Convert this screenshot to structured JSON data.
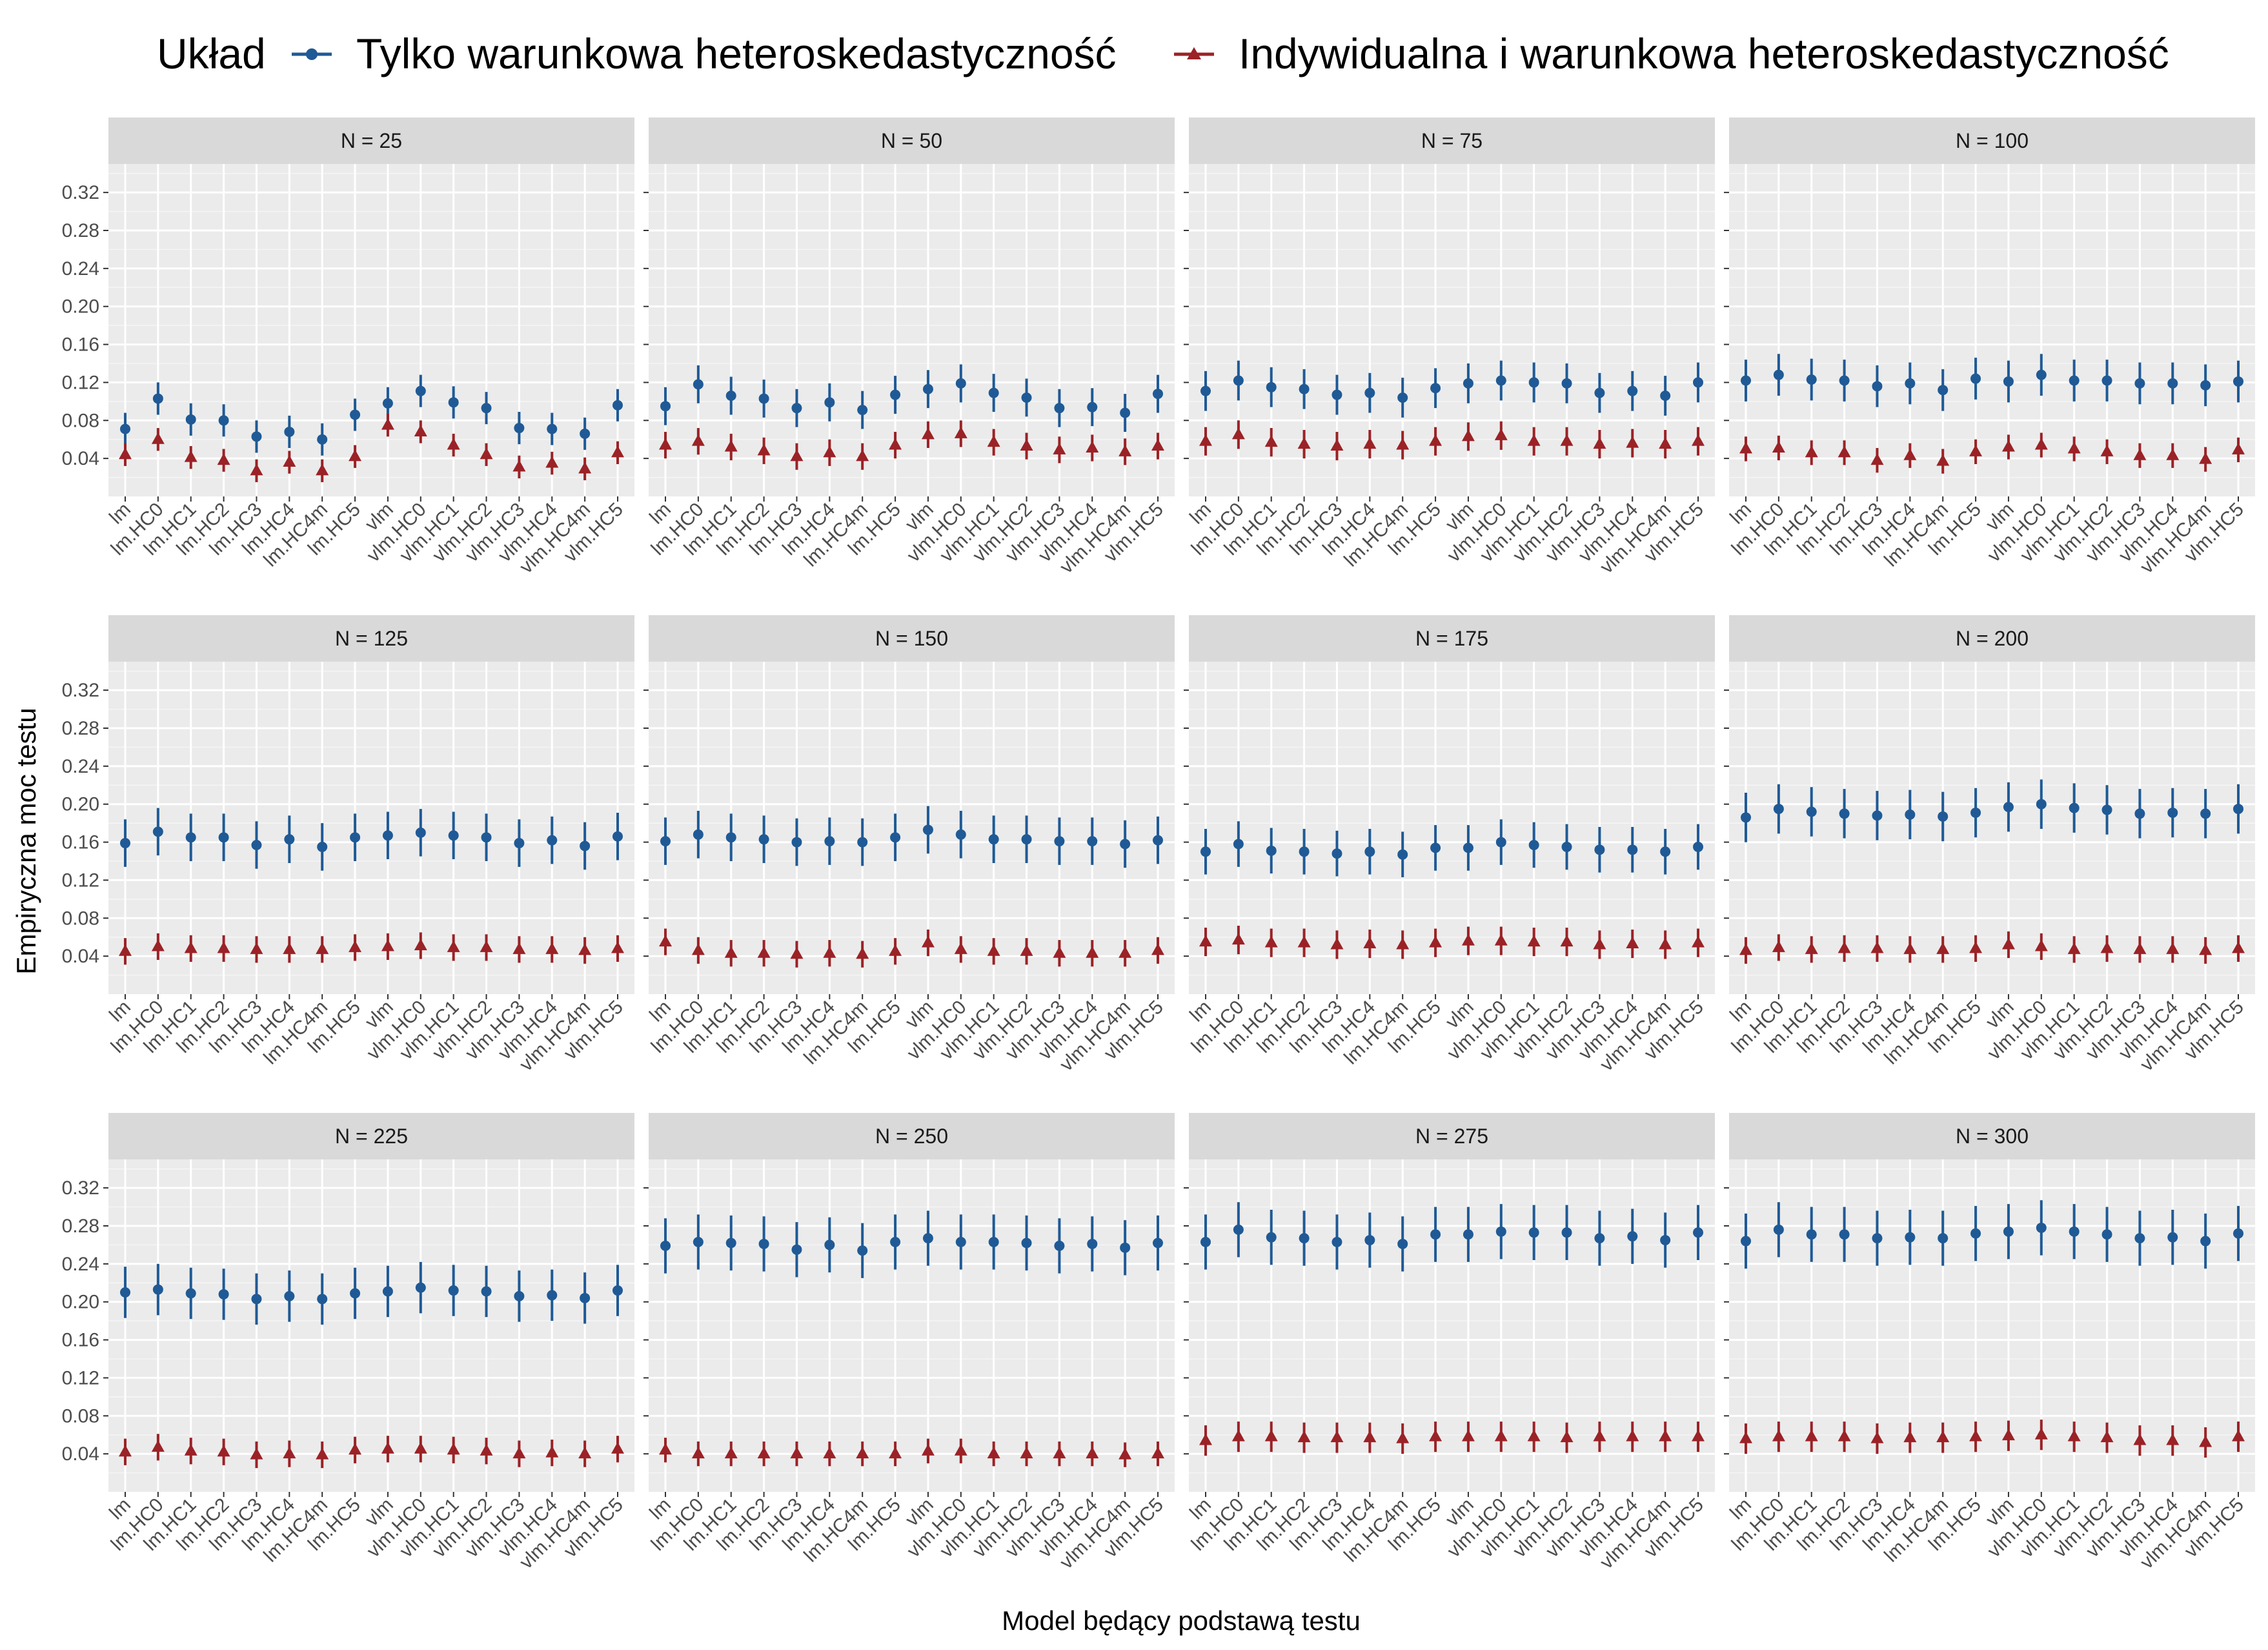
{
  "chart_data": {
    "type": "scatter",
    "subtype": "point-errorbar facet grid",
    "xlabel": "Model będący podstawą testu",
    "ylabel": "Empiryczna moc testu",
    "legend": {
      "title": "Układ",
      "position": "top",
      "entries": [
        {
          "name": "Tylko warunkowa heteroskedastyczność",
          "color": "#1f5a96",
          "marker": "circle"
        },
        {
          "name": "Indywidualna i warunkowa heteroskedastyczność",
          "color": "#9b2226",
          "marker": "triangle"
        }
      ]
    },
    "ylim": [
      0,
      0.35
    ],
    "yticks": [
      "0.04",
      "0.08",
      "0.12",
      "0.16",
      "0.20",
      "0.24",
      "0.28",
      "0.32"
    ],
    "categories": [
      "lm",
      "lm.HC0",
      "lm.HC1",
      "lm.HC2",
      "lm.HC3",
      "lm.HC4",
      "lm.HC4m",
      "lm.HC5",
      "vlm",
      "vlm.HC0",
      "vlm.HC1",
      "vlm.HC2",
      "vlm.HC3",
      "vlm.HC4",
      "vlm.HC4m",
      "vlm.HC5"
    ],
    "facets": [
      {
        "title": "N = 25",
        "blue": [
          0.071,
          0.103,
          0.081,
          0.08,
          0.063,
          0.068,
          0.06,
          0.086,
          0.098,
          0.111,
          0.099,
          0.093,
          0.072,
          0.071,
          0.066,
          0.096
        ],
        "blue_err": 0.017,
        "red": [
          0.044,
          0.06,
          0.041,
          0.038,
          0.027,
          0.036,
          0.027,
          0.042,
          0.075,
          0.068,
          0.054,
          0.044,
          0.031,
          0.035,
          0.029,
          0.046
        ],
        "red_err": 0.012
      },
      {
        "title": "N = 50",
        "blue": [
          0.095,
          0.118,
          0.106,
          0.103,
          0.093,
          0.099,
          0.091,
          0.107,
          0.113,
          0.119,
          0.109,
          0.104,
          0.093,
          0.094,
          0.088,
          0.108
        ],
        "blue_err": 0.02,
        "red": [
          0.054,
          0.058,
          0.052,
          0.048,
          0.042,
          0.046,
          0.042,
          0.054,
          0.065,
          0.066,
          0.057,
          0.053,
          0.049,
          0.051,
          0.047,
          0.053
        ],
        "red_err": 0.014
      },
      {
        "title": "N = 75",
        "blue": [
          0.111,
          0.122,
          0.115,
          0.113,
          0.107,
          0.109,
          0.104,
          0.114,
          0.119,
          0.122,
          0.12,
          0.119,
          0.109,
          0.111,
          0.106,
          0.12
        ],
        "blue_err": 0.021,
        "red": [
          0.058,
          0.065,
          0.057,
          0.055,
          0.053,
          0.055,
          0.054,
          0.058,
          0.063,
          0.064,
          0.058,
          0.058,
          0.055,
          0.056,
          0.055,
          0.058
        ],
        "red_err": 0.015
      },
      {
        "title": "N = 100",
        "blue": [
          0.122,
          0.128,
          0.123,
          0.122,
          0.116,
          0.119,
          0.112,
          0.124,
          0.121,
          0.128,
          0.122,
          0.122,
          0.119,
          0.119,
          0.117,
          0.121
        ],
        "blue_err": 0.022,
        "red": [
          0.05,
          0.051,
          0.046,
          0.046,
          0.038,
          0.043,
          0.037,
          0.047,
          0.052,
          0.054,
          0.05,
          0.047,
          0.043,
          0.043,
          0.039,
          0.049
        ],
        "red_err": 0.013
      },
      {
        "title": "N = 125",
        "blue": [
          0.159,
          0.171,
          0.165,
          0.165,
          0.157,
          0.163,
          0.155,
          0.165,
          0.167,
          0.17,
          0.167,
          0.165,
          0.159,
          0.162,
          0.156,
          0.166
        ],
        "blue_err": 0.025,
        "red": [
          0.045,
          0.05,
          0.048,
          0.048,
          0.047,
          0.047,
          0.047,
          0.049,
          0.05,
          0.051,
          0.049,
          0.049,
          0.047,
          0.047,
          0.046,
          0.048
        ],
        "red_err": 0.014
      },
      {
        "title": "N = 150",
        "blue": [
          0.161,
          0.168,
          0.165,
          0.163,
          0.16,
          0.161,
          0.16,
          0.165,
          0.173,
          0.168,
          0.163,
          0.163,
          0.161,
          0.161,
          0.158,
          0.162
        ],
        "blue_err": 0.025,
        "red": [
          0.055,
          0.046,
          0.043,
          0.043,
          0.042,
          0.043,
          0.042,
          0.045,
          0.054,
          0.047,
          0.045,
          0.045,
          0.043,
          0.043,
          0.043,
          0.046
        ],
        "red_err": 0.014
      },
      {
        "title": "N = 175",
        "blue": [
          0.15,
          0.158,
          0.151,
          0.15,
          0.148,
          0.15,
          0.147,
          0.154,
          0.154,
          0.16,
          0.157,
          0.155,
          0.152,
          0.152,
          0.15,
          0.155
        ],
        "blue_err": 0.024,
        "red": [
          0.055,
          0.057,
          0.054,
          0.054,
          0.052,
          0.053,
          0.052,
          0.054,
          0.056,
          0.056,
          0.055,
          0.055,
          0.052,
          0.053,
          0.052,
          0.054
        ],
        "red_err": 0.015
      },
      {
        "title": "N = 200",
        "blue": [
          0.186,
          0.195,
          0.192,
          0.19,
          0.188,
          0.189,
          0.187,
          0.191,
          0.197,
          0.2,
          0.196,
          0.194,
          0.19,
          0.191,
          0.19,
          0.195
        ],
        "blue_err": 0.026,
        "red": [
          0.046,
          0.049,
          0.047,
          0.048,
          0.048,
          0.047,
          0.047,
          0.048,
          0.052,
          0.05,
          0.047,
          0.048,
          0.047,
          0.047,
          0.046,
          0.048
        ],
        "red_err": 0.014
      },
      {
        "title": "N = 225",
        "blue": [
          0.21,
          0.213,
          0.209,
          0.208,
          0.203,
          0.206,
          0.203,
          0.209,
          0.211,
          0.215,
          0.212,
          0.211,
          0.206,
          0.207,
          0.204,
          0.212
        ],
        "blue_err": 0.027,
        "red": [
          0.042,
          0.047,
          0.043,
          0.042,
          0.039,
          0.04,
          0.039,
          0.044,
          0.045,
          0.045,
          0.044,
          0.043,
          0.04,
          0.041,
          0.04,
          0.045
        ],
        "red_err": 0.014
      },
      {
        "title": "N = 250",
        "blue": [
          0.259,
          0.263,
          0.262,
          0.261,
          0.255,
          0.26,
          0.254,
          0.263,
          0.267,
          0.263,
          0.263,
          0.262,
          0.259,
          0.261,
          0.257,
          0.262
        ],
        "blue_err": 0.029,
        "red": [
          0.044,
          0.04,
          0.04,
          0.04,
          0.04,
          0.04,
          0.04,
          0.04,
          0.043,
          0.043,
          0.04,
          0.04,
          0.04,
          0.04,
          0.039,
          0.04
        ],
        "red_err": 0.013
      },
      {
        "title": "N = 275",
        "blue": [
          0.263,
          0.276,
          0.268,
          0.267,
          0.263,
          0.265,
          0.261,
          0.271,
          0.271,
          0.274,
          0.273,
          0.273,
          0.267,
          0.269,
          0.265,
          0.273
        ],
        "blue_err": 0.029,
        "red": [
          0.054,
          0.058,
          0.058,
          0.057,
          0.057,
          0.057,
          0.056,
          0.058,
          0.058,
          0.058,
          0.058,
          0.057,
          0.058,
          0.058,
          0.058,
          0.058
        ],
        "red_err": 0.016
      },
      {
        "title": "N = 300",
        "blue": [
          0.264,
          0.276,
          0.271,
          0.271,
          0.267,
          0.268,
          0.267,
          0.272,
          0.274,
          0.278,
          0.274,
          0.271,
          0.267,
          0.268,
          0.264,
          0.272
        ],
        "blue_err": 0.029,
        "red": [
          0.056,
          0.058,
          0.058,
          0.058,
          0.056,
          0.057,
          0.057,
          0.058,
          0.059,
          0.06,
          0.058,
          0.057,
          0.054,
          0.054,
          0.052,
          0.058
        ],
        "red_err": 0.016
      }
    ]
  }
}
